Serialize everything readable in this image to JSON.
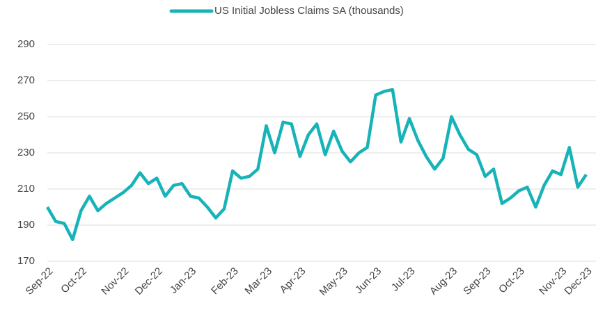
{
  "chart_data": {
    "type": "line",
    "categories": [
      "Sep-22",
      null,
      null,
      null,
      "Oct-22",
      null,
      null,
      null,
      null,
      "Nov-22",
      null,
      null,
      null,
      "Dec-22",
      null,
      null,
      null,
      "Jan-23",
      null,
      null,
      null,
      null,
      "Feb-23",
      null,
      null,
      null,
      "Mar-23",
      null,
      null,
      null,
      "Apr-23",
      null,
      null,
      null,
      null,
      "May-23",
      null,
      null,
      null,
      "Jun-23",
      null,
      null,
      null,
      "Jul-23",
      null,
      null,
      null,
      null,
      "Aug-23",
      null,
      null,
      null,
      "Sep-23",
      null,
      null,
      null,
      "Oct-23",
      null,
      null,
      null,
      null,
      "Nov-23",
      null,
      null,
      "Dec-23"
    ],
    "series": [
      {
        "name": "US Initial Jobless Claims SA (thousands)",
        "color": "#17b3b8",
        "values": [
          200,
          192,
          191,
          182,
          198,
          206,
          198,
          202,
          205,
          208,
          212,
          219,
          213,
          216,
          206,
          212,
          213,
          206,
          205,
          200,
          194,
          199,
          220,
          216,
          217,
          221,
          245,
          230,
          247,
          246,
          228,
          240,
          246,
          229,
          242,
          231,
          225,
          230,
          233,
          262,
          264,
          265,
          236,
          249,
          237,
          228,
          221,
          227,
          250,
          240,
          232,
          229,
          217,
          221,
          202,
          205,
          209,
          211,
          200,
          212,
          220,
          218,
          233,
          211,
          218
        ]
      }
    ],
    "ylim": [
      170,
      290
    ],
    "yticks": [
      170,
      190,
      210,
      230,
      250,
      270,
      290
    ],
    "grid": true,
    "legend": "top"
  }
}
